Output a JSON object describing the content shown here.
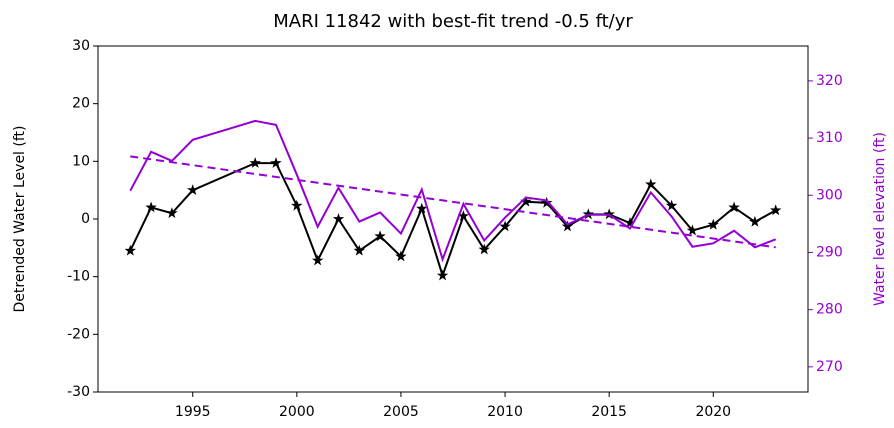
{
  "chart_data": {
    "type": "line",
    "title": "MARI 11842 with best-fit trend -0.5 ft/yr",
    "ylabel": "Detrended Water Level (ft)",
    "y2label": "Water level elevation (ft)",
    "xlim": [
      1990.45,
      2024.55
    ],
    "xticks": [
      1995,
      2000,
      2005,
      2010,
      2015,
      2020
    ],
    "ylim": [
      -30,
      30
    ],
    "yticks": [
      -30,
      -20,
      -10,
      0,
      10,
      20,
      30
    ],
    "y2lim": [
      265.6,
      326.1
    ],
    "y2ticks": [
      270,
      280,
      290,
      300,
      310,
      320
    ],
    "y2color": "#9400d3",
    "series": [
      {
        "color": "#000000",
        "marker": "star",
        "x": [
          1992,
          1993,
          1994,
          1995,
          1998,
          1999,
          2000,
          2001,
          2002,
          2003,
          2004,
          2005,
          2006,
          2007,
          2008,
          2009,
          2010,
          2011,
          2012,
          2013,
          2014,
          2015,
          2016,
          2017,
          2018,
          2019,
          2020,
          2021,
          2022,
          2023
        ],
        "values": [
          -5.5,
          2,
          1,
          5,
          9.7,
          9.7,
          2.3,
          -7.2,
          0,
          -5.5,
          -3,
          -6.5,
          1.8,
          -9.8,
          0.5,
          -5.3,
          -1.3,
          3,
          2.8,
          -1.3,
          0.8,
          0.8,
          -0.7,
          6,
          2.3,
          -2,
          -1,
          2,
          -0.5,
          1.5
        ]
      },
      {
        "color": "#9400d3",
        "axis": "y2",
        "x": [
          1992,
          1993,
          1994,
          1995,
          1998,
          1999,
          2000,
          2001,
          2002,
          2003,
          2004,
          2005,
          2006,
          2007,
          2008,
          2009,
          2010,
          2011,
          2012,
          2013,
          2014,
          2015,
          2016,
          2017,
          2018,
          2019,
          2020,
          2021,
          2022,
          2023
        ],
        "values": [
          300.8,
          307.6,
          306,
          309.7,
          313,
          312.3,
          303.6,
          294.5,
          301.3,
          295.4,
          297,
          293.3,
          301,
          288.8,
          298.5,
          292.1,
          296.1,
          299.6,
          299.1,
          294.9,
          296.6,
          296.6,
          294.2,
          300.5,
          296.3,
          291,
          291.6,
          293.8,
          290.9,
          292.3
        ]
      },
      {
        "color": "#9400d3",
        "axis": "y2",
        "dashed": true,
        "x": [
          1992,
          2023
        ],
        "values": [
          306.8,
          290.9
        ]
      }
    ]
  }
}
